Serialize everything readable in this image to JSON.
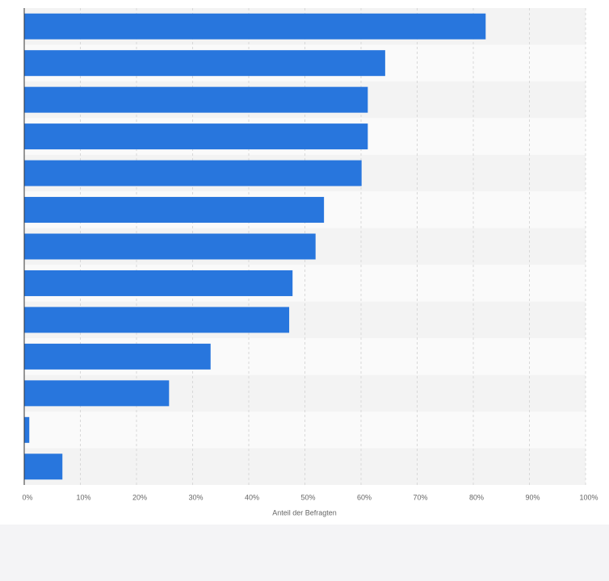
{
  "chart_data": {
    "type": "bar",
    "orientation": "horizontal",
    "x_label": "Anteil der Befragten",
    "categories": [
      null,
      null,
      null,
      null,
      null,
      null,
      null,
      null,
      null,
      null,
      null,
      null,
      null
    ],
    "values": [
      82.2,
      64.3,
      61.2,
      61.2,
      60.1,
      53.4,
      51.9,
      47.8,
      47.2,
      33.2,
      25.8,
      0.9,
      6.8
    ],
    "color": "#2876dd",
    "xlim": [
      0,
      100
    ],
    "xticks": [
      {
        "value": 0,
        "label": "0%"
      },
      {
        "value": 10,
        "label": "10%"
      },
      {
        "value": 20,
        "label": "20%"
      },
      {
        "value": 30,
        "label": "30%"
      },
      {
        "value": 40,
        "label": "40%"
      },
      {
        "value": 50,
        "label": "50%"
      },
      {
        "value": 60,
        "label": "60%"
      },
      {
        "value": 70,
        "label": "70%"
      },
      {
        "value": 80,
        "label": "80%"
      },
      {
        "value": 90,
        "label": "90%"
      },
      {
        "value": 100,
        "label": "100%"
      }
    ],
    "grid": true
  }
}
